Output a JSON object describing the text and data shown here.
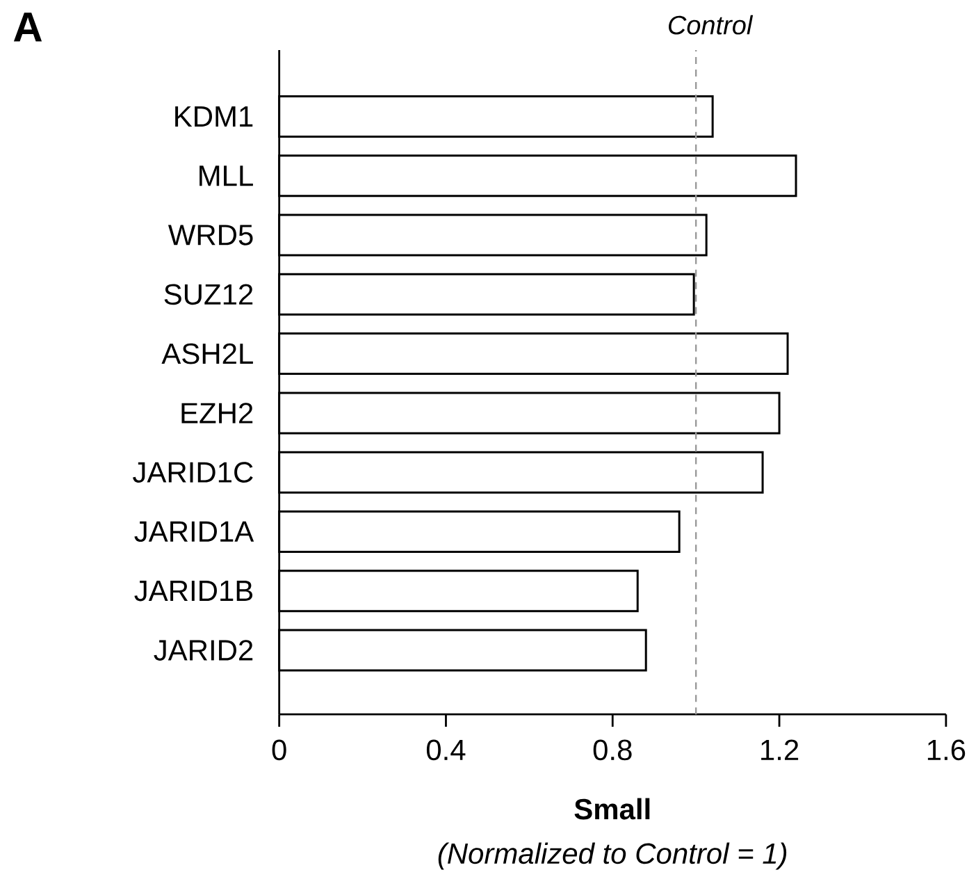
{
  "chart_data": {
    "type": "bar",
    "orientation": "horizontal",
    "title": "A",
    "categories": [
      "KDM1",
      "MLL",
      "WRD5",
      "SUZ12",
      "ASH2L",
      "EZH2",
      "JARID1C",
      "JARID1A",
      "JARID1B",
      "JARID2"
    ],
    "values": [
      1.04,
      1.24,
      1.025,
      0.995,
      1.22,
      1.2,
      1.16,
      0.96,
      0.86,
      0.88
    ],
    "color": "#ffffff",
    "xlim": [
      0,
      1.6
    ],
    "xticks": [
      0,
      0.4,
      0.8,
      1.2,
      1.6
    ],
    "xlabel": "Small",
    "annotations": [
      "(Normalized to Control = 1)"
    ],
    "ref_lines": [
      {
        "axis": "x",
        "value": 1,
        "label": "Control",
        "color": "#999999",
        "line_style": "dashed"
      }
    ]
  }
}
